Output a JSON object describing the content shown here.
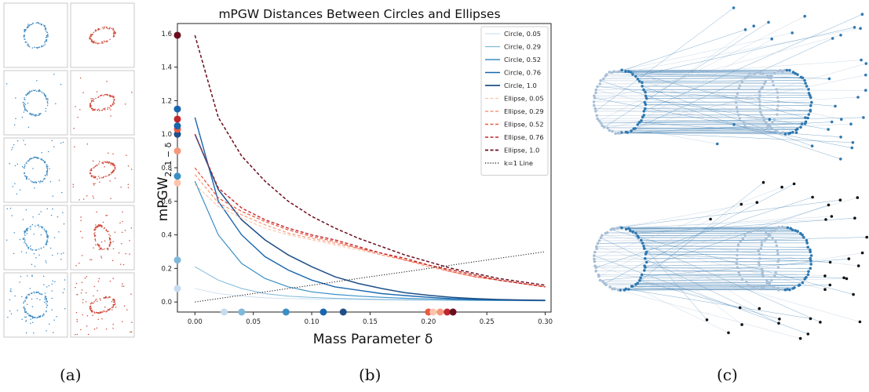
{
  "captions": [
    "(a)",
    "(b)",
    "(c)"
  ],
  "colors": {
    "circle": [
      "#c6dbef",
      "#7fb8da",
      "#3a8fc6",
      "#1966ad",
      "#1f4f86"
    ],
    "ellipse": [
      "#fcc5ab",
      "#f6987a",
      "#e85a43",
      "#c0272d",
      "#6b0d1d"
    ],
    "scatter_blue": "#3d8ac4",
    "scatter_red": "#cf4a3a",
    "match_light": "#a8bfd6",
    "match_dark": "#2f78b0",
    "outlier": "#111111"
  },
  "chart_data": {
    "type": "line",
    "title": "mPGW Distances Between Circles and Ellipses",
    "xlabel": "Mass Parameter δ",
    "ylabel_main": "mPGW",
    "ylabel_sub": "2, 1 − δ",
    "xlim": [
      -0.015,
      0.305
    ],
    "ylim": [
      -0.06,
      1.66
    ],
    "xticks": [
      0.0,
      0.05,
      0.1,
      0.15,
      0.2,
      0.25,
      0.3
    ],
    "xtick_labels": [
      "0.00",
      "0.05",
      "0.10",
      "0.15",
      "0.20",
      "0.25",
      "0.30"
    ],
    "yticks": [
      0.0,
      0.2,
      0.4,
      0.6,
      0.8,
      1.0,
      1.2,
      1.4,
      1.6
    ],
    "ytick_labels": [
      "0.0",
      "0.2",
      "0.4",
      "0.6",
      "0.8",
      "1.0",
      "1.2",
      "1.4",
      "1.6"
    ],
    "legend_position": "top-right",
    "x": [
      0.0,
      0.02,
      0.04,
      0.06,
      0.08,
      0.1,
      0.12,
      0.14,
      0.16,
      0.18,
      0.2,
      0.22,
      0.24,
      0.26,
      0.28,
      0.3
    ],
    "series": [
      {
        "name": "Circle,  0.05",
        "style": "solid",
        "values": [
          0.08,
          0.05,
          0.035,
          0.025,
          0.02,
          0.018,
          0.016,
          0.014,
          0.012,
          0.011,
          0.01,
          0.009,
          0.008,
          0.008,
          0.007,
          0.007
        ]
      },
      {
        "name": "Circle,  0.29",
        "style": "solid",
        "values": [
          0.21,
          0.13,
          0.08,
          0.05,
          0.035,
          0.027,
          0.022,
          0.018,
          0.015,
          0.013,
          0.011,
          0.01,
          0.009,
          0.008,
          0.008,
          0.007
        ]
      },
      {
        "name": "Circle,  0.52",
        "style": "solid",
        "values": [
          0.72,
          0.4,
          0.23,
          0.14,
          0.09,
          0.06,
          0.045,
          0.035,
          0.028,
          0.022,
          0.018,
          0.015,
          0.012,
          0.01,
          0.009,
          0.008
        ]
      },
      {
        "name": "Circle,  0.76",
        "style": "solid",
        "values": [
          1.1,
          0.6,
          0.4,
          0.27,
          0.19,
          0.13,
          0.09,
          0.07,
          0.05,
          0.038,
          0.028,
          0.02,
          0.015,
          0.012,
          0.01,
          0.009
        ]
      },
      {
        "name": "Circle,  1.0",
        "style": "solid",
        "values": [
          1.0,
          0.67,
          0.49,
          0.37,
          0.28,
          0.21,
          0.15,
          0.11,
          0.08,
          0.055,
          0.04,
          0.028,
          0.02,
          0.015,
          0.012,
          0.01
        ]
      },
      {
        "name": "Ellipse, 0.05",
        "style": "dashed",
        "values": [
          0.7,
          0.57,
          0.5,
          0.44,
          0.4,
          0.37,
          0.34,
          0.31,
          0.28,
          0.25,
          0.22,
          0.19,
          0.16,
          0.13,
          0.11,
          0.09
        ]
      },
      {
        "name": "Ellipse, 0.29",
        "style": "dashed",
        "values": [
          0.76,
          0.59,
          0.52,
          0.46,
          0.41,
          0.38,
          0.35,
          0.32,
          0.28,
          0.25,
          0.21,
          0.18,
          0.15,
          0.13,
          0.11,
          0.09
        ]
      },
      {
        "name": "Ellipse, 0.52",
        "style": "dashed",
        "values": [
          0.8,
          0.62,
          0.54,
          0.48,
          0.43,
          0.39,
          0.36,
          0.32,
          0.29,
          0.25,
          0.22,
          0.18,
          0.15,
          0.13,
          0.11,
          0.09
        ]
      },
      {
        "name": "Ellipse, 0.76",
        "style": "dashed",
        "values": [
          1.0,
          0.68,
          0.56,
          0.49,
          0.44,
          0.4,
          0.37,
          0.33,
          0.29,
          0.26,
          0.22,
          0.19,
          0.16,
          0.13,
          0.11,
          0.09
        ]
      },
      {
        "name": "Ellipse, 1.0",
        "style": "dashed",
        "values": [
          1.59,
          1.1,
          0.87,
          0.72,
          0.6,
          0.51,
          0.44,
          0.38,
          0.33,
          0.28,
          0.24,
          0.2,
          0.17,
          0.14,
          0.12,
          0.1
        ]
      },
      {
        "name": "k=1 Line",
        "style": "dotted",
        "values": [
          0.0,
          0.02,
          0.04,
          0.06,
          0.08,
          0.1,
          0.12,
          0.14,
          0.16,
          0.18,
          0.2,
          0.22,
          0.24,
          0.26,
          0.28,
          0.3
        ]
      }
    ],
    "y_axis_markers": [
      0.08,
      0.25,
      0.71,
      0.75,
      0.9,
      1.0,
      1.03,
      1.05,
      1.09,
      1.15,
      1.59
    ],
    "y_axis_marker_colors": [
      "#c6dbef",
      "#7fb8da",
      "#fcc5ab",
      "#3a8fc6",
      "#f6987a",
      "#1f4f86",
      "#e85a43",
      "#1966ad",
      "#c0272d",
      "#1966ad",
      "#6b0d1d"
    ],
    "x_axis_markers": [
      0.025,
      0.04,
      0.078,
      0.11,
      0.127,
      0.2,
      0.204,
      0.21,
      0.216,
      0.221
    ],
    "x_axis_marker_colors": [
      "#c6dbef",
      "#7fb8da",
      "#3a8fc6",
      "#1966ad",
      "#1f4f86",
      "#e85a43",
      "#fcc5ab",
      "#f6987a",
      "#c0272d",
      "#6b0d1d"
    ]
  }
}
